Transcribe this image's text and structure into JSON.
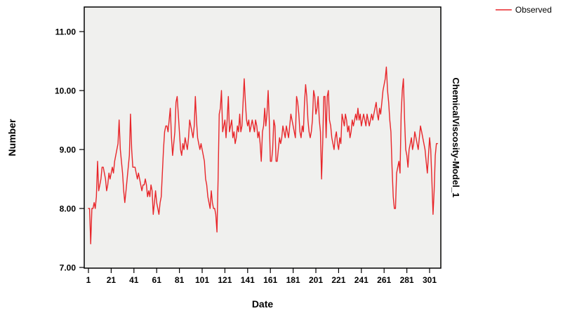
{
  "legend": {
    "label": "Observed",
    "color": "#e8262a"
  },
  "right_panel_label": "ChemicalViscosity-Model_1",
  "chart_data": {
    "type": "line",
    "title": "",
    "xlabel": "Date",
    "ylabel": "Number",
    "x_ticks": [
      1,
      21,
      41,
      61,
      81,
      101,
      121,
      141,
      161,
      181,
      201,
      221,
      241,
      261,
      281,
      301
    ],
    "y_ticks": [
      "7.00",
      "8.00",
      "9.00",
      "10.00",
      "11.00"
    ],
    "y_tick_values": [
      7,
      8,
      9,
      10,
      11
    ],
    "xlim": [
      1,
      310
    ],
    "ylim": [
      6.99,
      11.42
    ],
    "grid": false,
    "legend_position": "top-right",
    "plot_background": "#f0f0ee",
    "series": [
      {
        "name": "Observed",
        "color": "#e8262a",
        "values": [
          8.0,
          8.0,
          7.4,
          8.0,
          8.0,
          8.1,
          8.0,
          8.2,
          8.8,
          8.3,
          8.4,
          8.5,
          8.7,
          8.7,
          8.6,
          8.5,
          8.3,
          8.4,
          8.6,
          8.5,
          8.6,
          8.7,
          8.6,
          8.8,
          8.9,
          9.0,
          9.1,
          9.5,
          9.0,
          8.8,
          8.6,
          8.3,
          8.1,
          8.3,
          8.5,
          8.7,
          8.9,
          9.6,
          9.0,
          8.7,
          8.7,
          8.7,
          8.6,
          8.5,
          8.6,
          8.5,
          8.4,
          8.3,
          8.4,
          8.4,
          8.5,
          8.4,
          8.2,
          8.3,
          8.2,
          8.4,
          8.3,
          7.9,
          8.1,
          8.3,
          8.1,
          8.0,
          7.9,
          8.1,
          8.2,
          8.6,
          9.0,
          9.3,
          9.4,
          9.4,
          9.3,
          9.5,
          9.7,
          9.2,
          8.9,
          9.1,
          9.3,
          9.8,
          9.9,
          9.6,
          9.3,
          9.0,
          8.9,
          9.1,
          9.0,
          9.2,
          9.1,
          9.0,
          9.2,
          9.5,
          9.4,
          9.3,
          9.2,
          9.4,
          9.9,
          9.5,
          9.2,
          9.1,
          9.0,
          9.1,
          9.0,
          8.9,
          8.8,
          8.5,
          8.4,
          8.2,
          8.1,
          8.0,
          8.3,
          8.1,
          8.0,
          8.0,
          7.9,
          7.6,
          8.5,
          9.6,
          9.7,
          10.0,
          9.3,
          9.4,
          9.5,
          9.2,
          9.5,
          9.9,
          9.3,
          9.4,
          9.5,
          9.2,
          9.3,
          9.1,
          9.2,
          9.4,
          9.3,
          9.6,
          9.3,
          9.4,
          9.8,
          10.2,
          9.8,
          9.5,
          9.4,
          9.5,
          9.3,
          9.4,
          9.5,
          9.4,
          9.3,
          9.5,
          9.4,
          9.2,
          9.3,
          9.1,
          8.8,
          9.3,
          9.4,
          9.7,
          9.4,
          9.6,
          10.0,
          9.5,
          8.8,
          8.8,
          9.0,
          9.5,
          9.4,
          8.8,
          8.8,
          9.0,
          9.2,
          9.1,
          9.2,
          9.4,
          9.3,
          9.2,
          9.4,
          9.3,
          9.2,
          9.4,
          9.6,
          9.5,
          9.4,
          9.3,
          9.2,
          9.9,
          9.8,
          9.6,
          9.3,
          9.2,
          9.4,
          9.3,
          9.8,
          10.1,
          9.9,
          9.5,
          9.3,
          9.2,
          9.3,
          9.5,
          10.0,
          9.9,
          9.6,
          9.7,
          9.9,
          9.5,
          9.3,
          8.5,
          9.1,
          9.9,
          9.9,
          9.2,
          9.9,
          10.0,
          9.5,
          9.4,
          9.2,
          9.1,
          9.0,
          9.2,
          9.3,
          9.1,
          9.0,
          9.2,
          9.1,
          9.6,
          9.5,
          9.4,
          9.6,
          9.5,
          9.3,
          9.4,
          9.2,
          9.3,
          9.5,
          9.4,
          9.5,
          9.6,
          9.5,
          9.7,
          9.5,
          9.6,
          9.4,
          9.5,
          9.6,
          9.5,
          9.4,
          9.6,
          9.5,
          9.4,
          9.5,
          9.6,
          9.5,
          9.6,
          9.7,
          9.8,
          9.6,
          9.5,
          9.7,
          9.6,
          9.8,
          10.0,
          10.1,
          10.2,
          10.4,
          10.0,
          9.8,
          9.5,
          9.3,
          8.7,
          8.2,
          8.0,
          8.0,
          8.6,
          8.7,
          8.8,
          8.6,
          9.6,
          10.0,
          10.2,
          9.5,
          9.0,
          8.9,
          8.7,
          9.0,
          9.1,
          9.2,
          9.0,
          9.1,
          9.3,
          9.2,
          9.1,
          9.0,
          9.2,
          9.4,
          9.3,
          9.2,
          9.1,
          9.0,
          8.8,
          8.6,
          8.9,
          9.2,
          9.0,
          8.5,
          7.9,
          8.3,
          8.9,
          9.1,
          9.1
        ]
      }
    ]
  }
}
